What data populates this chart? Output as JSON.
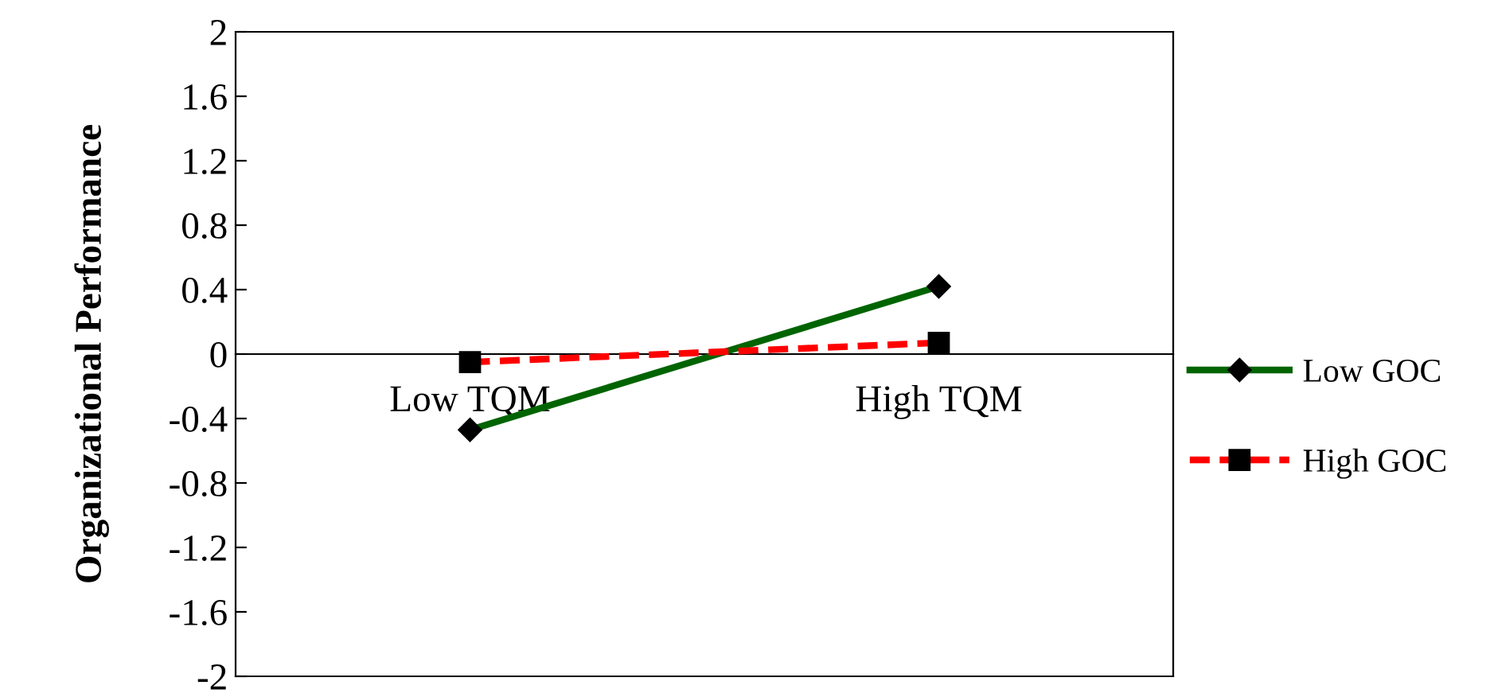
{
  "chart_data": {
    "type": "line",
    "ylabel": "Organizational Performance",
    "categories": [
      "Low TQM",
      "High TQM"
    ],
    "series": [
      {
        "name": "Low GOC",
        "color": "#006400",
        "values": [
          -0.47,
          0.42
        ],
        "marker": "diamond",
        "line_style": "solid"
      },
      {
        "name": "High GOC",
        "color": "#ff0000",
        "values": [
          -0.05,
          0.07
        ],
        "marker": "square",
        "line_style": "dashed"
      }
    ],
    "ylim": [
      -2,
      2
    ],
    "yticks": [
      -2,
      -1.6,
      -1.2,
      -0.8,
      -0.4,
      0,
      0.4,
      0.8,
      1.2,
      1.6,
      2
    ],
    "grid": false,
    "legend": "right"
  }
}
